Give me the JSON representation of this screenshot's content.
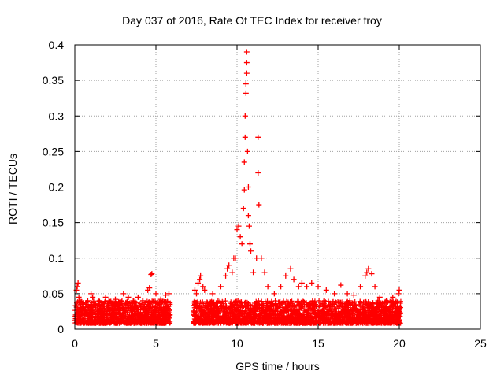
{
  "chart_data": {
    "type": "scatter",
    "title": "Day 037 of 2016, Rate Of TEC Index for receiver froy",
    "xlabel": "GPS time / hours",
    "ylabel": "ROTI / TECUs",
    "xlim": [
      0,
      25
    ],
    "ylim": [
      0,
      0.4
    ],
    "xticks": [
      0,
      5,
      10,
      15,
      20,
      25
    ],
    "xtick_labels": [
      "0",
      "5",
      "10",
      "15",
      "20",
      "25"
    ],
    "yticks": [
      0,
      0.05,
      0.1,
      0.15,
      0.2,
      0.25,
      0.3,
      0.35,
      0.4
    ],
    "ytick_labels": [
      "0",
      "0.05",
      "0.1",
      "0.15",
      "0.2",
      "0.25",
      "0.3",
      "0.35",
      "0.4"
    ],
    "grid": true,
    "marker": "+",
    "color": "#ff0000",
    "segments": [
      {
        "x_start": 0.0,
        "x_end": 5.9
      },
      {
        "x_start": 7.3,
        "x_end": 20.1
      }
    ],
    "series": [
      {
        "name": "ROTI",
        "points": [
          [
            0.05,
            0.02
          ],
          [
            0.1,
            0.055
          ],
          [
            0.15,
            0.06
          ],
          [
            0.2,
            0.065
          ],
          [
            0.25,
            0.045
          ],
          [
            0.3,
            0.04
          ],
          [
            0.5,
            0.035
          ],
          [
            0.8,
            0.04
          ],
          [
            1.0,
            0.05
          ],
          [
            1.1,
            0.045
          ],
          [
            1.5,
            0.04
          ],
          [
            1.9,
            0.045
          ],
          [
            2.1,
            0.04
          ],
          [
            2.5,
            0.042
          ],
          [
            2.7,
            0.038
          ],
          [
            3.0,
            0.05
          ],
          [
            3.3,
            0.045
          ],
          [
            3.6,
            0.04
          ],
          [
            3.9,
            0.045
          ],
          [
            4.2,
            0.04
          ],
          [
            4.5,
            0.055
          ],
          [
            4.6,
            0.058
          ],
          [
            4.7,
            0.077
          ],
          [
            4.75,
            0.078
          ],
          [
            5.0,
            0.05
          ],
          [
            5.3,
            0.042
          ],
          [
            5.6,
            0.048
          ],
          [
            5.8,
            0.05
          ],
          [
            7.4,
            0.055
          ],
          [
            7.5,
            0.05
          ],
          [
            7.6,
            0.065
          ],
          [
            7.7,
            0.07
          ],
          [
            7.75,
            0.075
          ],
          [
            7.9,
            0.06
          ],
          [
            8.0,
            0.055
          ],
          [
            8.5,
            0.05
          ],
          [
            9.0,
            0.06
          ],
          [
            9.3,
            0.075
          ],
          [
            9.4,
            0.085
          ],
          [
            9.5,
            0.09
          ],
          [
            9.7,
            0.08
          ],
          [
            9.8,
            0.1
          ],
          [
            9.9,
            0.1
          ],
          [
            10.0,
            0.14
          ],
          [
            10.1,
            0.145
          ],
          [
            10.2,
            0.13
          ],
          [
            10.3,
            0.12
          ],
          [
            10.4,
            0.17
          ],
          [
            10.45,
            0.196
          ],
          [
            10.45,
            0.235
          ],
          [
            10.5,
            0.27
          ],
          [
            10.5,
            0.3
          ],
          [
            10.55,
            0.332
          ],
          [
            10.55,
            0.345
          ],
          [
            10.6,
            0.36
          ],
          [
            10.6,
            0.375
          ],
          [
            10.6,
            0.39
          ],
          [
            10.65,
            0.25
          ],
          [
            10.7,
            0.2
          ],
          [
            10.7,
            0.16
          ],
          [
            10.75,
            0.145
          ],
          [
            10.8,
            0.12
          ],
          [
            10.85,
            0.11
          ],
          [
            11.0,
            0.08
          ],
          [
            11.2,
            0.1
          ],
          [
            11.3,
            0.27
          ],
          [
            11.3,
            0.22
          ],
          [
            11.35,
            0.175
          ],
          [
            11.5,
            0.1
          ],
          [
            11.7,
            0.08
          ],
          [
            11.9,
            0.06
          ],
          [
            12.3,
            0.05
          ],
          [
            12.7,
            0.06
          ],
          [
            13.0,
            0.075
          ],
          [
            13.3,
            0.085
          ],
          [
            13.5,
            0.07
          ],
          [
            13.8,
            0.06
          ],
          [
            14.0,
            0.065
          ],
          [
            14.3,
            0.06
          ],
          [
            14.6,
            0.065
          ],
          [
            15.0,
            0.06
          ],
          [
            15.5,
            0.055
          ],
          [
            16.0,
            0.05
          ],
          [
            16.4,
            0.062
          ],
          [
            16.8,
            0.05
          ],
          [
            17.2,
            0.048
          ],
          [
            17.6,
            0.06
          ],
          [
            17.9,
            0.075
          ],
          [
            18.0,
            0.08
          ],
          [
            18.1,
            0.085
          ],
          [
            18.3,
            0.078
          ],
          [
            18.5,
            0.06
          ],
          [
            18.8,
            0.045
          ],
          [
            19.2,
            0.04
          ],
          [
            19.6,
            0.045
          ],
          [
            19.95,
            0.05
          ],
          [
            20.0,
            0.055
          ]
        ]
      }
    ]
  }
}
